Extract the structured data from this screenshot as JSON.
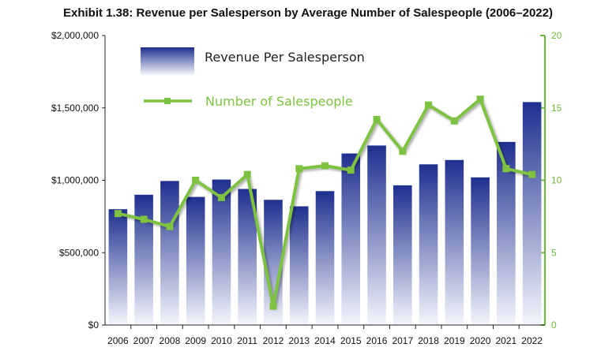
{
  "chart_data": {
    "type": "bar+line",
    "title": "Exhibit 1.38: Revenue per Salesperson by Average Number of Salespeople (2006–2022)",
    "categories": [
      "2006",
      "2007",
      "2008",
      "2009",
      "2010",
      "2011",
      "2012",
      "2013",
      "2014",
      "2015",
      "2016",
      "2017",
      "2018",
      "2019",
      "2020",
      "2021",
      "2022"
    ],
    "series": [
      {
        "name": "Revenue Per Salesperson",
        "type": "bar",
        "axis": "left",
        "values": [
          800000,
          900000,
          995000,
          885000,
          1005000,
          940000,
          865000,
          820000,
          925000,
          1185000,
          1240000,
          965000,
          1110000,
          1140000,
          1020000,
          1265000,
          1540000
        ]
      },
      {
        "name": "Number of Salespeople",
        "type": "line",
        "axis": "right",
        "values": [
          7.7,
          7.3,
          6.8,
          10.0,
          8.8,
          10.4,
          1.3,
          10.8,
          11.0,
          10.7,
          14.2,
          12.0,
          15.2,
          14.1,
          15.6,
          10.8,
          10.4
        ]
      }
    ],
    "y_left": {
      "min": 0,
      "max": 2000000,
      "ticks": [
        "$0",
        "$500,000",
        "$1,000,000",
        "$1,500,000",
        "$2,000,000"
      ]
    },
    "y_right": {
      "min": 0,
      "max": 20,
      "ticks": [
        "0",
        "5",
        "10",
        "15",
        "20"
      ]
    },
    "legend_position": "top-left",
    "grid": false,
    "colors": {
      "bar_top": "#1f2f8f",
      "bar_bottom": "#f4f6fc",
      "line": "#7ec242",
      "right_axis": "#6dbb3e"
    }
  }
}
